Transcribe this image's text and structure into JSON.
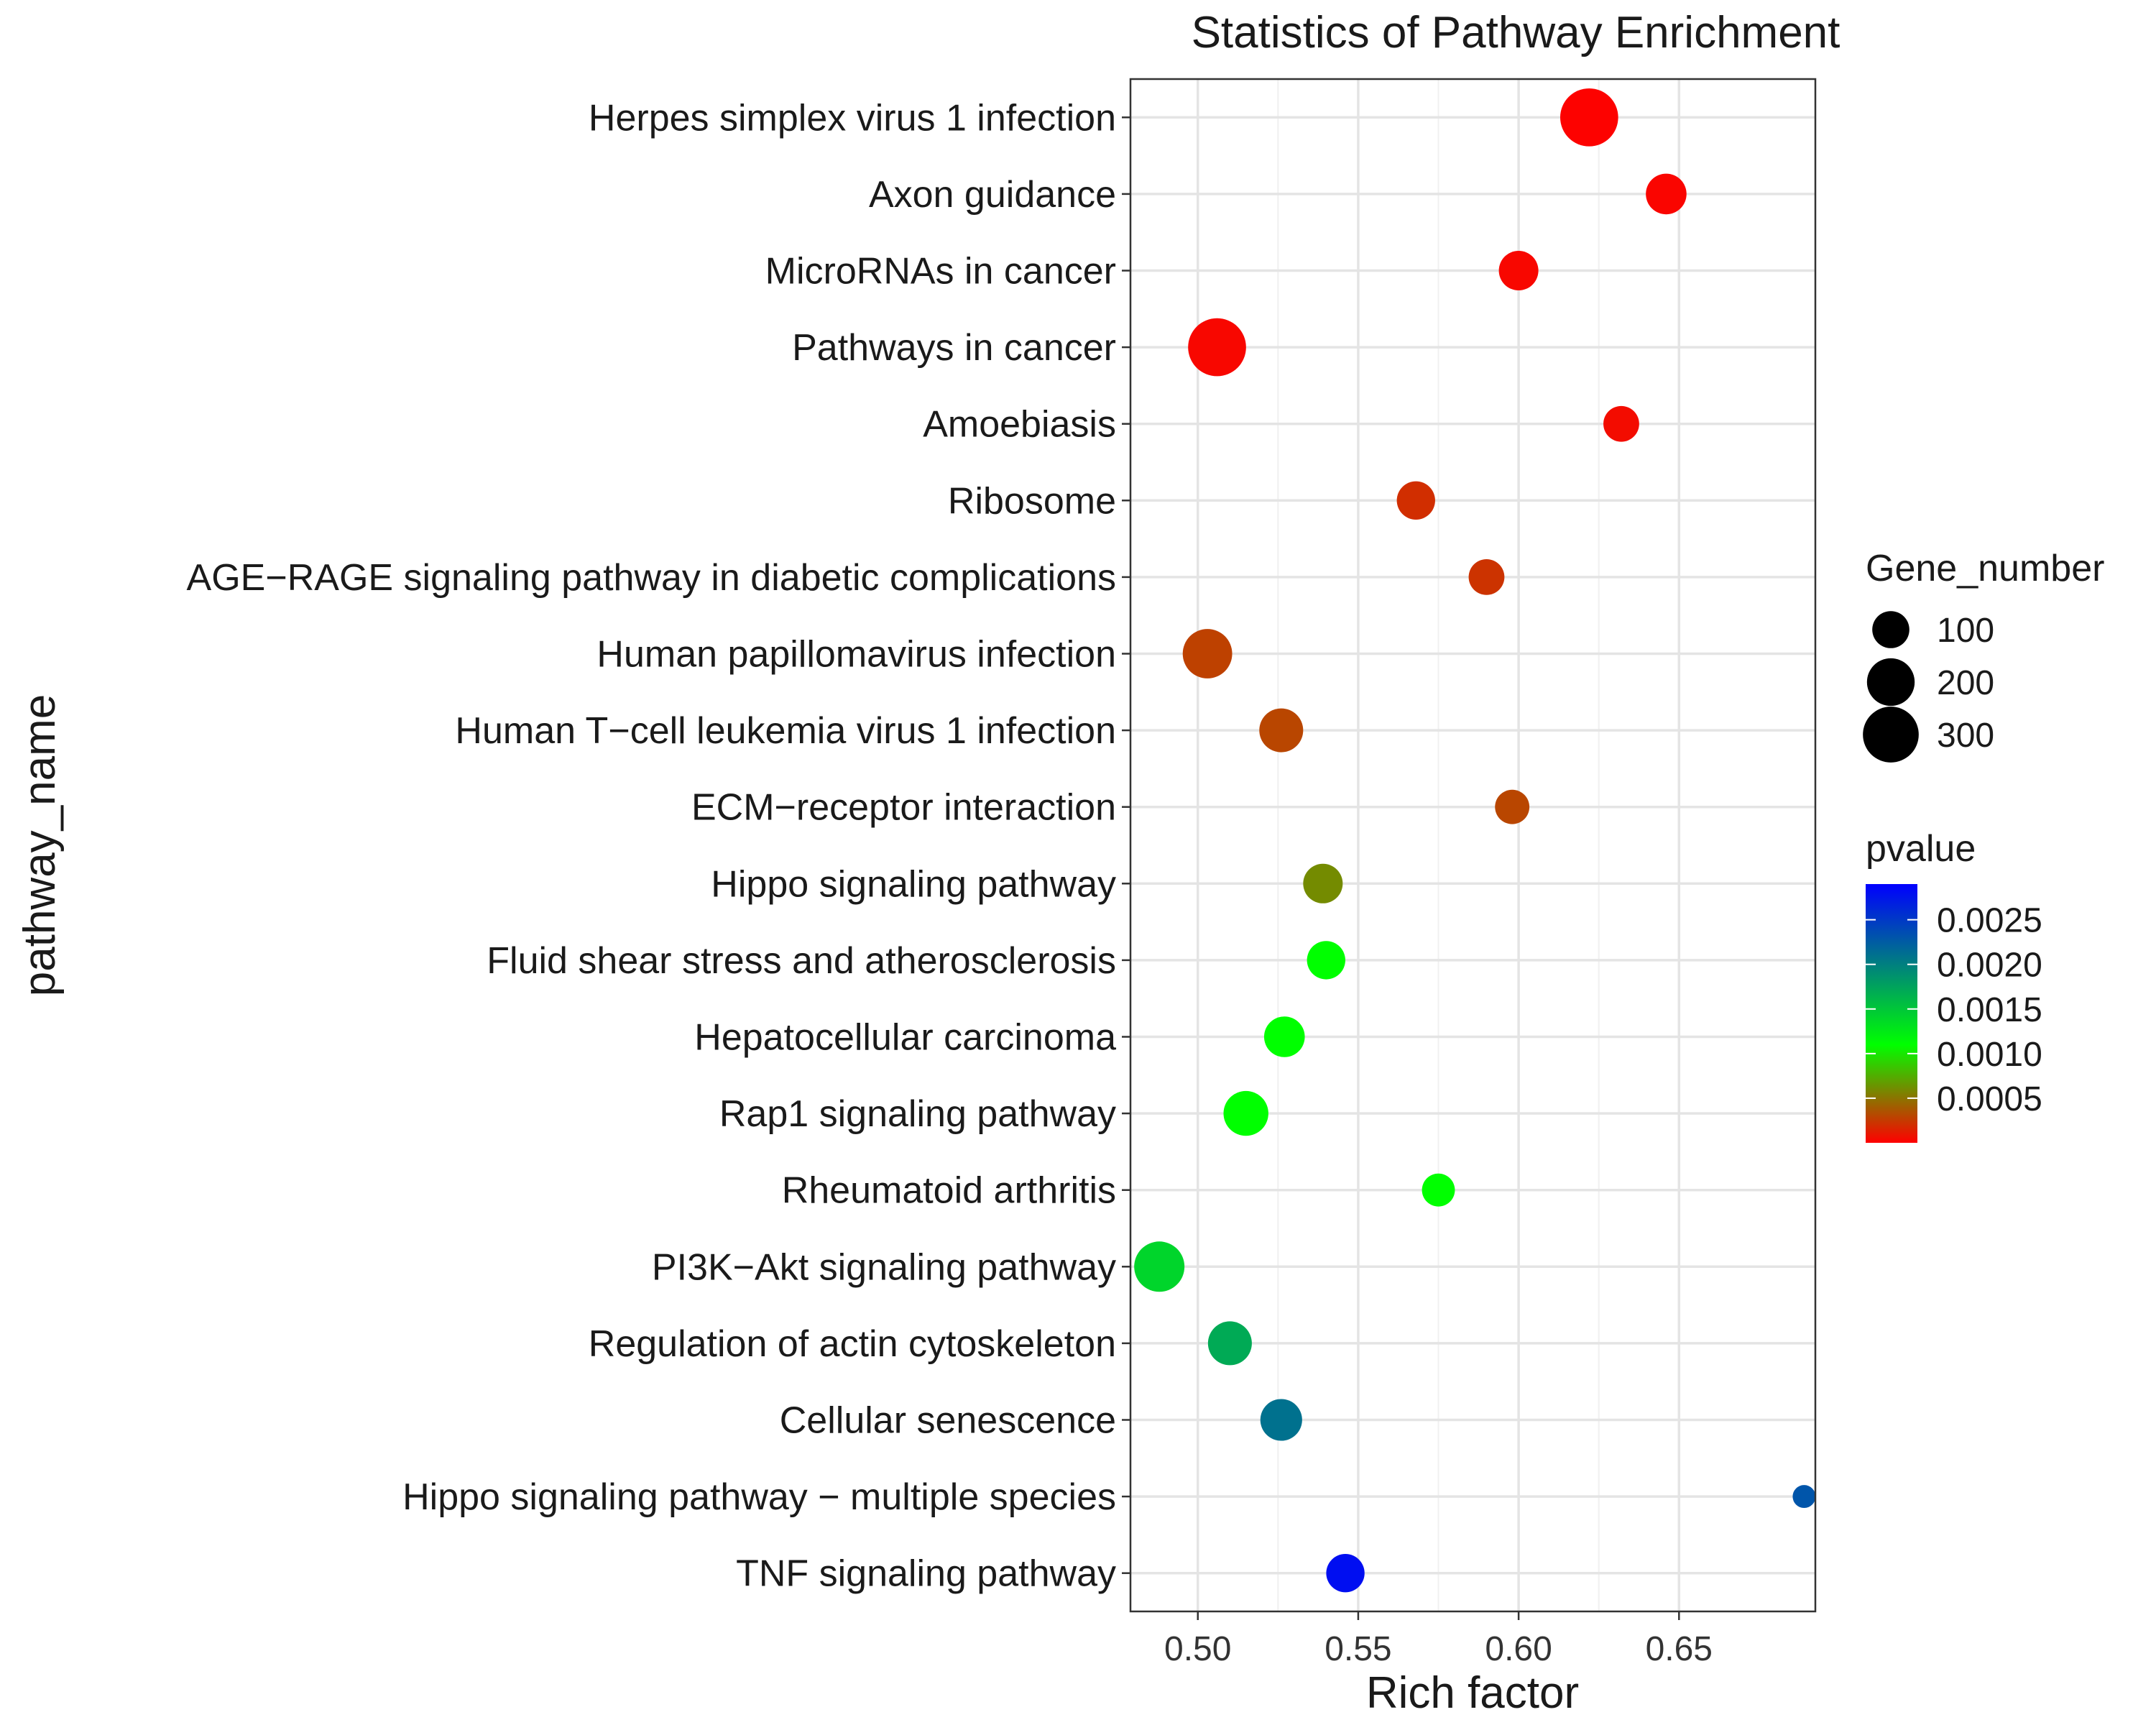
{
  "chart_data": {
    "type": "scatter",
    "title": "Statistics of Pathway Enrichment",
    "xlabel": "Rich factor",
    "ylabel": "pathway_name",
    "xlim": [
      0.479,
      0.6925
    ],
    "xticks": [
      0.5,
      0.55,
      0.6,
      0.65
    ],
    "xtick_labels": [
      "0.50",
      "0.55",
      "0.60",
      "0.65"
    ],
    "grid": true,
    "points": [
      {
        "pathway": "Herpes simplex virus 1 infection",
        "rich_factor": 0.622,
        "gene_number": 330,
        "pvalue": 1e-05
      },
      {
        "pathway": "Axon guidance",
        "rich_factor": 0.646,
        "gene_number": 130,
        "pvalue": 2e-05
      },
      {
        "pathway": "MicroRNAs in cancer",
        "rich_factor": 0.6,
        "gene_number": 120,
        "pvalue": 3e-05
      },
      {
        "pathway": "Pathways in cancer",
        "rich_factor": 0.506,
        "gene_number": 330,
        "pvalue": 3e-05
      },
      {
        "pathway": "Amoebiasis",
        "rich_factor": 0.632,
        "gene_number": 90,
        "pvalue": 5e-05
      },
      {
        "pathway": "Ribosome",
        "rich_factor": 0.568,
        "gene_number": 110,
        "pvalue": 0.0002
      },
      {
        "pathway": "AGE−RAGE signaling pathway in diabetic complications",
        "rich_factor": 0.59,
        "gene_number": 90,
        "pvalue": 0.00022
      },
      {
        "pathway": "Human papillomavirus infection",
        "rich_factor": 0.503,
        "gene_number": 220,
        "pvalue": 0.00028
      },
      {
        "pathway": "Human T−cell leukemia virus 1 infection",
        "rich_factor": 0.526,
        "gene_number": 160,
        "pvalue": 0.0003
      },
      {
        "pathway": "ECM−receptor interaction",
        "rich_factor": 0.598,
        "gene_number": 80,
        "pvalue": 0.0003
      },
      {
        "pathway": "Hippo signaling pathway",
        "rich_factor": 0.539,
        "gene_number": 120,
        "pvalue": 0.0006
      },
      {
        "pathway": "Fluid shear stress and atherosclerosis",
        "rich_factor": 0.54,
        "gene_number": 110,
        "pvalue": 0.0011
      },
      {
        "pathway": "Hepatocellular carcinoma",
        "rich_factor": 0.527,
        "gene_number": 130,
        "pvalue": 0.0011
      },
      {
        "pathway": "Rap1 signaling pathway",
        "rich_factor": 0.515,
        "gene_number": 170,
        "pvalue": 0.0011
      },
      {
        "pathway": "Rheumatoid arthritis",
        "rich_factor": 0.575,
        "gene_number": 70,
        "pvalue": 0.0011
      },
      {
        "pathway": "PI3K−Akt signaling pathway",
        "rich_factor": 0.488,
        "gene_number": 230,
        "pvalue": 0.0014
      },
      {
        "pathway": "Regulation of actin cytoskeleton",
        "rich_factor": 0.51,
        "gene_number": 160,
        "pvalue": 0.0017
      },
      {
        "pathway": "Cellular senescence",
        "rich_factor": 0.526,
        "gene_number": 140,
        "pvalue": 0.0021
      },
      {
        "pathway": "Hippo signaling pathway − multiple species",
        "rich_factor": 0.689,
        "gene_number": 20,
        "pvalue": 0.0023
      },
      {
        "pathway": "TNF signaling pathway",
        "rich_factor": 0.546,
        "gene_number": 110,
        "pvalue": 0.0028
      }
    ],
    "size_legend": {
      "title": "Gene_number",
      "values": [
        100,
        200,
        300
      ],
      "labels": [
        "100",
        "200",
        "300"
      ]
    },
    "color_legend": {
      "title": "pvalue",
      "range": [
        0.0,
        0.0029
      ],
      "ticks": [
        0.0025,
        0.002,
        0.0015,
        0.001,
        0.0005
      ],
      "tick_labels": [
        "0.0025",
        "0.0020",
        "0.0015",
        "0.0010",
        "0.0005"
      ],
      "colors": [
        "#ff0000",
        "#00ff00",
        "#0000ff"
      ],
      "color_stops": [
        0.0,
        0.0011,
        0.0029
      ]
    }
  }
}
